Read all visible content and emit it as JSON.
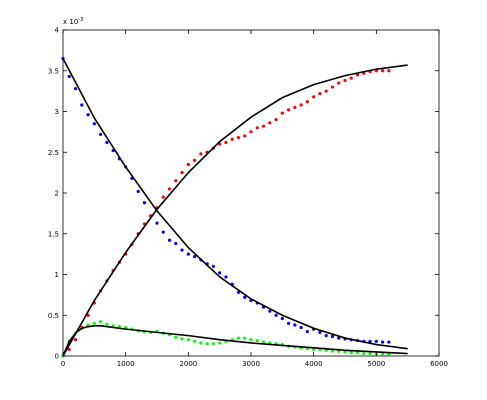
{
  "chart_data": {
    "type": "scatter",
    "title": "",
    "xlabel": "",
    "ylabel": "",
    "xlim": [
      0,
      6000
    ],
    "ylim": [
      0,
      0.004
    ],
    "grid": false,
    "legend": "none",
    "x_ticks": [
      0,
      1000,
      2000,
      3000,
      4000,
      5000,
      6000
    ],
    "x_tick_labels": [
      "0",
      "1000",
      "2000",
      "3000",
      "4000",
      "5000",
      "6000"
    ],
    "y_ticks": [
      0,
      0.0005,
      0.001,
      0.0015,
      0.002,
      0.0025,
      0.003,
      0.0035,
      0.004
    ],
    "y_tick_labels": [
      "0",
      "0.5",
      "1",
      "1.5",
      "2",
      "2.5",
      "3",
      "3.5",
      "4"
    ],
    "y_exponent_label": "x 10",
    "y_exponent_power": "-3",
    "series": [
      {
        "color": "#0000ff",
        "style": "markers",
        "x": [
          0,
          100,
          200,
          300,
          400,
          500,
          600,
          700,
          800,
          900,
          1000,
          1100,
          1200,
          1300,
          1400,
          1500,
          1600,
          1700,
          1800,
          1900,
          2000,
          2100,
          2200,
          2300,
          2400,
          2500,
          2600,
          2700,
          2800,
          2900,
          3000,
          3100,
          3200,
          3300,
          3400,
          3500,
          3600,
          3700,
          3800,
          3900,
          4000,
          4100,
          4200,
          4300,
          4400,
          4500,
          4600,
          4700,
          4800,
          4900,
          5000,
          5100,
          5200
        ],
        "y": [
          0.00365,
          0.00343,
          0.00328,
          0.00308,
          0.00296,
          0.00285,
          0.00272,
          0.00262,
          0.00252,
          0.00242,
          0.00232,
          0.00218,
          0.00202,
          0.00188,
          0.00172,
          0.00163,
          0.00152,
          0.00142,
          0.00138,
          0.0013,
          0.00125,
          0.00122,
          0.00118,
          0.00113,
          0.0011,
          0.00102,
          0.00097,
          0.00088,
          0.00078,
          0.00072,
          0.00068,
          0.00065,
          0.0006,
          0.00055,
          0.0005,
          0.00046,
          0.0004,
          0.00038,
          0.00035,
          0.0003,
          0.00033,
          0.00029,
          0.00025,
          0.00024,
          0.00022,
          0.00021,
          0.0002,
          0.00019,
          0.00018,
          0.00018,
          0.00018,
          0.00017,
          0.00017
        ]
      },
      {
        "color": "#ff0000",
        "style": "markers",
        "x": [
          0,
          100,
          200,
          300,
          400,
          500,
          600,
          700,
          800,
          900,
          1000,
          1100,
          1200,
          1300,
          1400,
          1500,
          1600,
          1700,
          1800,
          1900,
          2000,
          2100,
          2200,
          2300,
          2400,
          2500,
          2600,
          2700,
          2800,
          2900,
          3000,
          3100,
          3200,
          3300,
          3400,
          3500,
          3600,
          3700,
          3800,
          3900,
          4000,
          4100,
          4200,
          4300,
          4400,
          4500,
          4600,
          4700,
          4800,
          4900,
          5000,
          5100,
          5200
        ],
        "y": [
          0,
          8e-05,
          0.0002,
          0.00035,
          0.0005,
          0.00065,
          0.0008,
          0.00092,
          0.00105,
          0.00115,
          0.00125,
          0.00137,
          0.0015,
          0.00162,
          0.00172,
          0.00182,
          0.00195,
          0.00205,
          0.00215,
          0.00225,
          0.00235,
          0.0024,
          0.00248,
          0.0025,
          0.00255,
          0.0026,
          0.00262,
          0.00266,
          0.00268,
          0.0027,
          0.00275,
          0.0028,
          0.00282,
          0.00286,
          0.0029,
          0.00298,
          0.00302,
          0.00305,
          0.00308,
          0.00312,
          0.00318,
          0.00322,
          0.00325,
          0.0033,
          0.00335,
          0.00338,
          0.00341,
          0.00345,
          0.00347,
          0.00349,
          0.0035,
          0.0035,
          0.0035
        ]
      },
      {
        "color": "#00ff00",
        "style": "markers",
        "x": [
          0,
          100,
          200,
          300,
          400,
          500,
          600,
          700,
          800,
          900,
          1000,
          1100,
          1200,
          1300,
          1400,
          1500,
          1600,
          1700,
          1800,
          1900,
          2000,
          2100,
          2200,
          2300,
          2400,
          2500,
          2600,
          2700,
          2800,
          2900,
          3000,
          3100,
          3200,
          3300,
          3400,
          3500,
          3600,
          3700,
          3800,
          3900,
          4000,
          4100,
          4200,
          4300,
          4400,
          4500,
          4600,
          4700,
          4800,
          4900,
          5000,
          5100,
          5200
        ],
        "y": [
          0,
          0.00018,
          0.00028,
          0.00034,
          0.00038,
          0.0004,
          0.00042,
          0.00039,
          0.00037,
          0.00036,
          0.00035,
          0.00033,
          0.00031,
          0.0003,
          0.00029,
          0.0003,
          0.00028,
          0.00026,
          0.00023,
          0.00021,
          0.0002,
          0.00018,
          0.00016,
          0.00015,
          0.00015,
          0.00016,
          0.00018,
          0.0002,
          0.00022,
          0.00022,
          0.0002,
          0.00019,
          0.00017,
          0.00016,
          0.00015,
          0.00014,
          0.00012,
          0.00011,
          0.0001,
          9e-05,
          8e-05,
          8e-05,
          7e-05,
          6e-05,
          6e-05,
          5e-05,
          4e-05,
          4e-05,
          3e-05,
          3e-05,
          2e-05,
          2e-05,
          2e-05
        ]
      },
      {
        "color": "#000000",
        "style": "line",
        "x": [
          0,
          500,
          1000,
          1500,
          2000,
          2500,
          3000,
          3500,
          4000,
          4500,
          5000,
          5500
        ],
        "y": [
          0,
          0.00068,
          0.00127,
          0.0018,
          0.00225,
          0.00263,
          0.00293,
          0.00317,
          0.00333,
          0.00344,
          0.00352,
          0.00357
        ]
      },
      {
        "color": "#000000",
        "style": "line",
        "x": [
          0,
          500,
          1000,
          1500,
          2000,
          2500,
          3000,
          3500,
          4000,
          4500,
          5000,
          5500
        ],
        "y": [
          0.00365,
          0.00292,
          0.00232,
          0.00178,
          0.00133,
          0.00097,
          0.0007,
          0.0005,
          0.00034,
          0.00022,
          0.00014,
          9e-05
        ]
      },
      {
        "color": "#000000",
        "style": "line",
        "x": [
          0,
          100,
          200,
          300,
          400,
          500,
          600,
          800,
          1000,
          1500,
          2000,
          2500,
          3000,
          3500,
          4000,
          4500,
          5000,
          5500
        ],
        "y": [
          0,
          0.00018,
          0.00028,
          0.00034,
          0.00036,
          0.00037,
          0.00037,
          0.00035,
          0.00033,
          0.00029,
          0.00025,
          0.0002,
          0.00016,
          0.00013,
          0.0001,
          7e-05,
          5e-05,
          3e-05
        ]
      }
    ]
  }
}
